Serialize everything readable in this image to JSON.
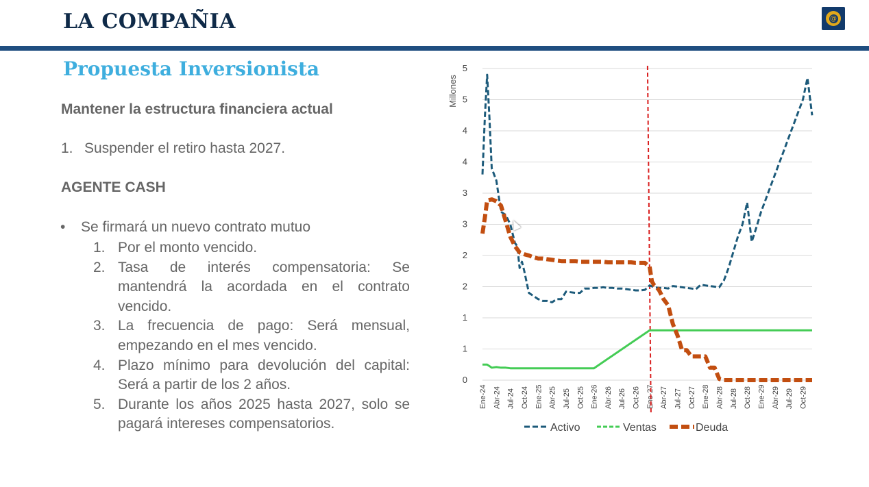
{
  "header": {
    "title": "LA COMPAÑIA"
  },
  "subtitle": "Propuesta Inversionista",
  "section1": {
    "heading": "Mantener la estructura financiera actual",
    "item_number": "1.",
    "item_text": "Suspender el retiro hasta 2027."
  },
  "section2": {
    "heading": "AGENTE CASH",
    "bullet_symbol": "•",
    "bullet_text": "Se firmará un nuevo contrato mutuo",
    "items": [
      {
        "num": "1.",
        "text": "Por el monto vencido."
      },
      {
        "num": "2.",
        "text": "Tasa de interés compensatoria: Se mantendrá la acordada en el contrato vencido."
      },
      {
        "num": "3.",
        "text": "La frecuencia de pago: Será mensual, empezando en el mes vencido."
      },
      {
        "num": "4.",
        "text": "Plazo mínimo para devolución del capital: Será a partir de los 2 años."
      },
      {
        "num": "5.",
        "text": "Durante los años 2025 hasta 2027, solo se pagará intereses compensatorios."
      }
    ]
  },
  "chart_data": {
    "type": "line",
    "ylabel": "Millones",
    "y_tick_labels": [
      "0",
      "1",
      "1",
      "2",
      "2",
      "3",
      "3",
      "4",
      "4",
      "5",
      "5"
    ],
    "y_tick_values": [
      0,
      0.5,
      1,
      1.5,
      2,
      2.5,
      3,
      3.5,
      4,
      4.5,
      5
    ],
    "ylim": [
      0,
      5
    ],
    "x_tick_labels": [
      "Ene-24",
      "Abr-24",
      "Jul-24",
      "Oct-24",
      "Ene-25",
      "Abr-25",
      "Jul-25",
      "Oct-25",
      "Ene-26",
      "Abr-26",
      "Jul-26",
      "Oct-26",
      "Ene-27",
      "Abr-27",
      "Jul-27",
      "Oct-27",
      "Ene-28",
      "Abr-28",
      "Jul-28",
      "Oct-28",
      "Ene-29",
      "Abr-29",
      "Jul-29",
      "Oct-29"
    ],
    "x_range": [
      0,
      71
    ],
    "grid": true,
    "legend_position": "bottom",
    "vertical_marker": {
      "x": 36,
      "color": "#d91e1e"
    },
    "series": [
      {
        "name": "Activo",
        "color": "#1c5a7a",
        "style": "dashed",
        "points": [
          [
            0,
            3.3
          ],
          [
            0.5,
            4.2
          ],
          [
            1,
            4.9
          ],
          [
            1.5,
            4.2
          ],
          [
            2,
            3.4
          ],
          [
            3,
            3.2
          ],
          [
            4,
            2.7
          ],
          [
            5,
            2.65
          ],
          [
            6,
            2.5
          ],
          [
            7,
            2.2
          ],
          [
            7.5,
            2.15
          ],
          [
            8,
            1.8
          ],
          [
            8.5,
            1.9
          ],
          [
            9,
            1.75
          ],
          [
            10,
            1.4
          ],
          [
            11,
            1.35
          ],
          [
            12,
            1.3
          ],
          [
            13,
            1.27
          ],
          [
            14,
            1.27
          ],
          [
            15,
            1.25
          ],
          [
            16,
            1.3
          ],
          [
            17,
            1.3
          ],
          [
            18,
            1.42
          ],
          [
            19,
            1.41
          ],
          [
            20,
            1.4
          ],
          [
            21,
            1.4
          ],
          [
            22,
            1.47
          ],
          [
            23,
            1.47
          ],
          [
            24,
            1.48
          ],
          [
            25,
            1.48
          ],
          [
            26,
            1.49
          ],
          [
            27,
            1.48
          ],
          [
            28,
            1.48
          ],
          [
            29,
            1.47
          ],
          [
            30,
            1.47
          ],
          [
            31,
            1.46
          ],
          [
            32,
            1.45
          ],
          [
            33,
            1.44
          ],
          [
            34,
            1.44
          ],
          [
            35,
            1.45
          ],
          [
            36,
            1.52
          ],
          [
            37,
            1.49
          ],
          [
            38,
            1.48
          ],
          [
            39,
            1.48
          ],
          [
            40,
            1.47
          ],
          [
            41,
            1.51
          ],
          [
            42,
            1.5
          ],
          [
            43,
            1.49
          ],
          [
            44,
            1.48
          ],
          [
            45,
            1.47
          ],
          [
            46,
            1.46
          ],
          [
            47,
            1.53
          ],
          [
            48,
            1.52
          ],
          [
            49,
            1.51
          ],
          [
            50,
            1.5
          ],
          [
            51,
            1.49
          ],
          [
            52,
            1.6
          ],
          [
            53,
            1.8
          ],
          [
            54,
            2.05
          ],
          [
            55,
            2.3
          ],
          [
            56,
            2.5
          ],
          [
            57,
            2.85
          ],
          [
            58,
            2.22
          ],
          [
            59,
            2.45
          ],
          [
            60,
            2.7
          ],
          [
            61,
            2.9
          ],
          [
            62,
            3.1
          ],
          [
            63,
            3.3
          ],
          [
            64,
            3.5
          ],
          [
            65,
            3.7
          ],
          [
            66,
            3.9
          ],
          [
            67,
            4.1
          ],
          [
            68,
            4.3
          ],
          [
            69,
            4.5
          ],
          [
            70,
            4.85
          ],
          [
            71,
            4.25
          ]
        ]
      },
      {
        "name": "Ventas",
        "color": "#44cc55",
        "style": "solid",
        "points": [
          [
            0,
            0.25
          ],
          [
            1,
            0.25
          ],
          [
            2,
            0.2
          ],
          [
            3,
            0.21
          ],
          [
            4,
            0.2
          ],
          [
            5,
            0.2
          ],
          [
            6,
            0.19
          ],
          [
            7,
            0.19
          ],
          [
            8,
            0.19
          ],
          [
            9,
            0.19
          ],
          [
            10,
            0.19
          ],
          [
            11,
            0.19
          ],
          [
            12,
            0.19
          ],
          [
            13,
            0.19
          ],
          [
            14,
            0.19
          ],
          [
            15,
            0.19
          ],
          [
            16,
            0.19
          ],
          [
            17,
            0.19
          ],
          [
            18,
            0.19
          ],
          [
            19,
            0.19
          ],
          [
            20,
            0.19
          ],
          [
            21,
            0.19
          ],
          [
            22,
            0.19
          ],
          [
            23,
            0.19
          ],
          [
            24,
            0.19
          ],
          [
            36,
            0.8
          ],
          [
            40,
            0.8
          ],
          [
            50,
            0.8
          ],
          [
            60,
            0.8
          ],
          [
            71,
            0.8
          ]
        ]
      },
      {
        "name": "Deuda",
        "color": "#c24e10",
        "style": "dashed-thick",
        "points": [
          [
            0,
            2.35
          ],
          [
            0.5,
            2.6
          ],
          [
            1,
            2.88
          ],
          [
            2,
            2.9
          ],
          [
            3,
            2.87
          ],
          [
            4,
            2.8
          ],
          [
            5,
            2.55
          ],
          [
            6,
            2.3
          ],
          [
            7,
            2.15
          ],
          [
            8,
            2.05
          ],
          [
            9,
            2.02
          ],
          [
            10,
            2.0
          ],
          [
            11,
            1.97
          ],
          [
            12,
            1.95
          ],
          [
            13,
            1.95
          ],
          [
            14,
            1.94
          ],
          [
            15,
            1.93
          ],
          [
            16,
            1.92
          ],
          [
            17,
            1.91
          ],
          [
            18,
            1.91
          ],
          [
            19,
            1.91
          ],
          [
            20,
            1.91
          ],
          [
            21,
            1.9
          ],
          [
            22,
            1.9
          ],
          [
            23,
            1.9
          ],
          [
            24,
            1.9
          ],
          [
            25,
            1.9
          ],
          [
            26,
            1.9
          ],
          [
            27,
            1.89
          ],
          [
            28,
            1.89
          ],
          [
            29,
            1.89
          ],
          [
            30,
            1.89
          ],
          [
            31,
            1.89
          ],
          [
            32,
            1.89
          ],
          [
            33,
            1.88
          ],
          [
            34,
            1.88
          ],
          [
            35,
            1.88
          ],
          [
            36,
            1.82
          ],
          [
            36.5,
            1.58
          ],
          [
            37,
            1.52
          ],
          [
            38,
            1.45
          ],
          [
            39,
            1.3
          ],
          [
            40,
            1.2
          ],
          [
            41,
            0.9
          ],
          [
            42,
            0.72
          ],
          [
            43,
            0.48
          ],
          [
            44,
            0.48
          ],
          [
            45,
            0.38
          ],
          [
            46,
            0.38
          ],
          [
            47,
            0.38
          ],
          [
            48,
            0.38
          ],
          [
            49,
            0.2
          ],
          [
            50,
            0.2
          ],
          [
            51,
            0.02
          ],
          [
            52,
            0
          ],
          [
            60,
            0
          ],
          [
            71,
            0
          ]
        ]
      }
    ]
  }
}
